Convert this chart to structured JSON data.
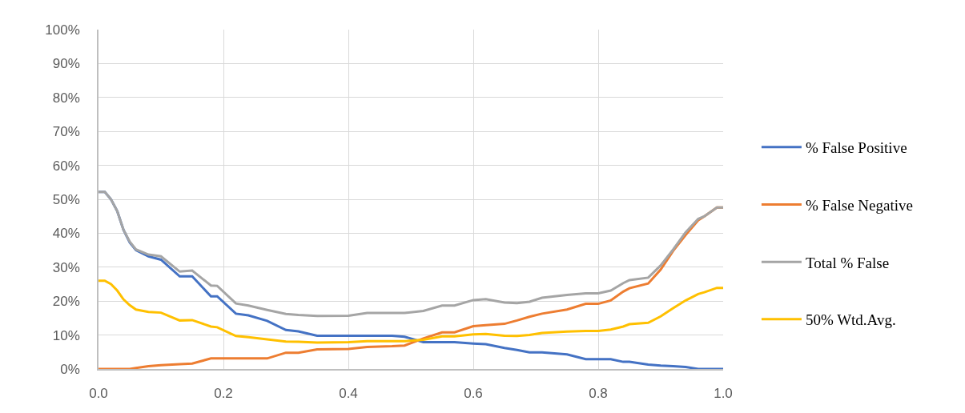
{
  "chart_data": {
    "type": "line",
    "x": [
      0,
      0.01,
      0.02,
      0.03,
      0.04,
      0.05,
      0.06,
      0.08,
      0.1,
      0.13,
      0.15,
      0.18,
      0.19,
      0.22,
      0.24,
      0.27,
      0.3,
      0.32,
      0.35,
      0.4,
      0.43,
      0.47,
      0.49,
      0.52,
      0.55,
      0.57,
      0.6,
      0.62,
      0.65,
      0.67,
      0.69,
      0.71,
      0.75,
      0.78,
      0.8,
      0.82,
      0.84,
      0.85,
      0.88,
      0.9,
      0.92,
      0.94,
      0.96,
      0.97,
      0.99,
      1.0
    ],
    "series": [
      {
        "name": "% False Positive",
        "color": "#4472c4",
        "values": [
          52.2,
          52.2,
          50,
          46.5,
          41,
          37.3,
          35,
          33.2,
          32.2,
          27.3,
          27.3,
          21.4,
          21.4,
          16.3,
          15.8,
          14.2,
          11.5,
          11.1,
          9.8,
          9.8,
          9.8,
          9.8,
          9.5,
          7.9,
          7.9,
          7.9,
          7.5,
          7.3,
          6.2,
          5.6,
          4.9,
          4.9,
          4.3,
          2.9,
          2.9,
          2.9,
          2.1,
          2.1,
          1.3,
          1.0,
          0.8,
          0.6,
          0,
          0,
          0,
          0
        ]
      },
      {
        "name": "% False Negative",
        "color": "#ed7d31",
        "values": [
          0,
          0,
          0,
          0,
          0,
          0,
          0.3,
          0.8,
          1.1,
          1.4,
          1.6,
          3.1,
          3.1,
          3.1,
          3.1,
          3.1,
          4.8,
          4.8,
          5.8,
          5.9,
          6.5,
          6.7,
          6.9,
          9.0,
          10.8,
          10.8,
          12.6,
          12.9,
          13.3,
          14.3,
          15.4,
          16.3,
          17.5,
          19.2,
          19.2,
          20.2,
          22.8,
          23.8,
          25.2,
          29.3,
          34.8,
          39.5,
          43.8,
          45,
          47.6,
          47.6
        ]
      },
      {
        "name": "Total % False",
        "color": "#a5a5a5",
        "values": [
          52.2,
          52.2,
          50,
          46.5,
          41,
          37.5,
          35.2,
          33.7,
          33.2,
          28.7,
          29,
          24.6,
          24.5,
          19.3,
          18.7,
          17.4,
          16.2,
          15.9,
          15.6,
          15.7,
          16.5,
          16.5,
          16.5,
          17.1,
          18.7,
          18.7,
          20.3,
          20.6,
          19.6,
          19.4,
          19.8,
          21,
          21.8,
          22.3,
          22.3,
          23.1,
          25.3,
          26.2,
          26.9,
          30.5,
          35.2,
          40.3,
          44.2,
          45,
          47.6,
          47.6
        ]
      },
      {
        "name": "50% Wtd.Avg.",
        "color": "#ffc000",
        "values": [
          26,
          26,
          25,
          23.1,
          20.5,
          18.8,
          17.5,
          16.8,
          16.6,
          14.3,
          14.4,
          12.5,
          12.3,
          9.7,
          9.4,
          8.7,
          8.1,
          8.0,
          7.8,
          7.9,
          8.2,
          8.2,
          8.2,
          8.6,
          9.6,
          9.6,
          10.2,
          10.3,
          9.8,
          9.7,
          10.0,
          10.6,
          11.0,
          11.2,
          11.2,
          11.6,
          12.5,
          13.2,
          13.6,
          15.5,
          17.9,
          20.2,
          22.1,
          22.6,
          23.9,
          23.9
        ]
      }
    ],
    "xlim": [
      0,
      1
    ],
    "xticks": [
      {
        "value": 0,
        "label": "0.0"
      },
      {
        "value": 0.2,
        "label": "0.2"
      },
      {
        "value": 0.4,
        "label": "0.4"
      },
      {
        "value": 0.6,
        "label": "0.6"
      },
      {
        "value": 0.8,
        "label": "0.8"
      },
      {
        "value": 1,
        "label": "1.0"
      }
    ],
    "ylim": [
      0,
      100
    ],
    "yticks": [
      {
        "value": 0,
        "label": "0%"
      },
      {
        "value": 10,
        "label": "10%"
      },
      {
        "value": 20,
        "label": "20%"
      },
      {
        "value": 30,
        "label": "30%"
      },
      {
        "value": 40,
        "label": "40%"
      },
      {
        "value": 50,
        "label": "50%"
      },
      {
        "value": 60,
        "label": "60%"
      },
      {
        "value": 70,
        "label": "70%"
      },
      {
        "value": 80,
        "label": "80%"
      },
      {
        "value": 90,
        "label": "90%"
      },
      {
        "value": 100,
        "label": "100%"
      }
    ],
    "grid": true,
    "legend": "right",
    "marker": "none",
    "line_style": "solid"
  }
}
